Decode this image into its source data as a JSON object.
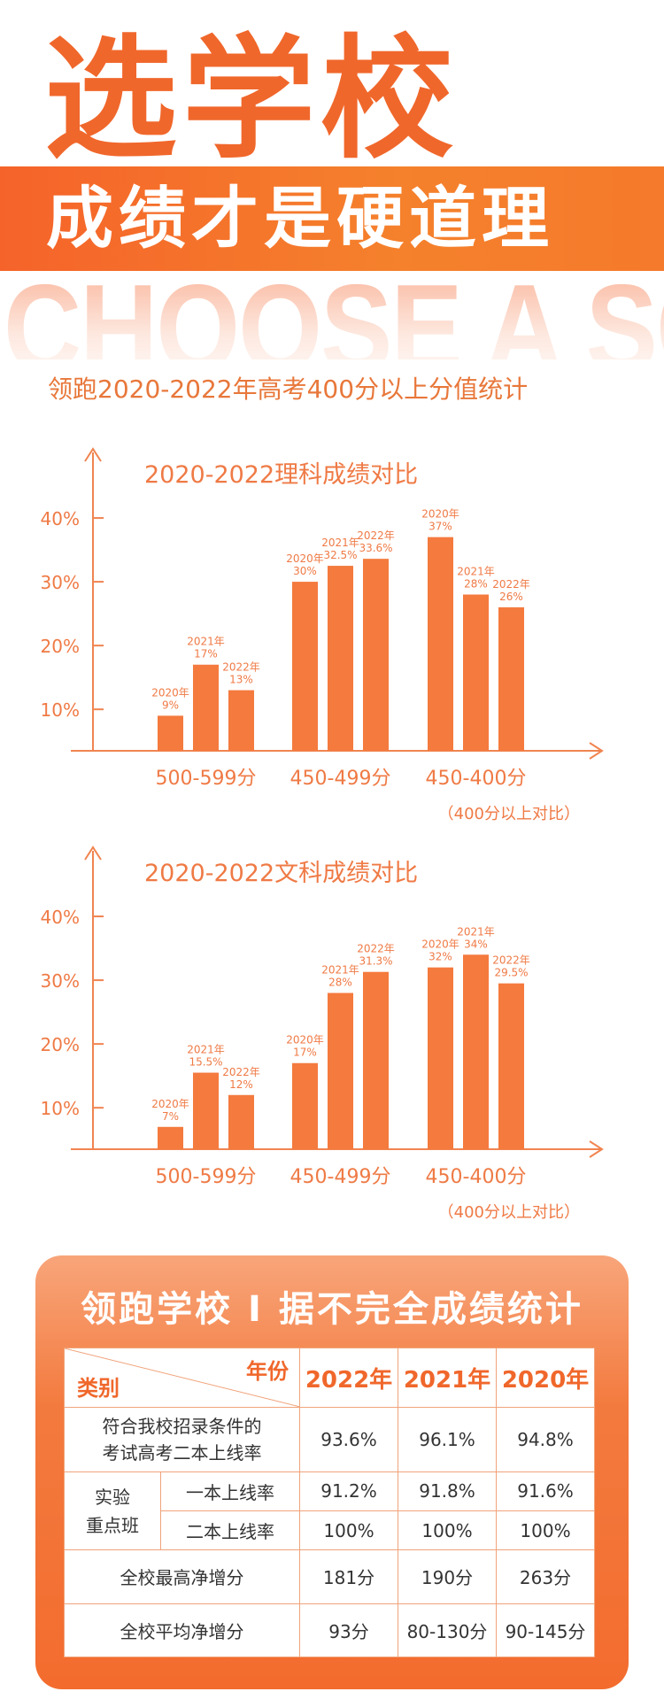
{
  "header": {
    "title": "选学校",
    "banner": "成绩才是硬道理",
    "english": "CHOOSE A SCHOOL",
    "subtitle": "领跑2020-2022年高考400分以上分值统计"
  },
  "chart_data": [
    {
      "type": "bar",
      "title": "2020-2022理科成绩对比",
      "categories": [
        "500-599分",
        "450-499分",
        "450-400分"
      ],
      "series": [
        {
          "name": "2020年",
          "values": [
            9,
            30,
            37
          ]
        },
        {
          "name": "2021年",
          "values": [
            17,
            32.5,
            28
          ]
        },
        {
          "name": "2022年",
          "values": [
            13,
            33.6,
            26
          ]
        }
      ],
      "yticks": [
        "10%",
        "20%",
        "30%",
        "40%"
      ],
      "ytick_values": [
        10,
        20,
        30,
        40
      ],
      "ylim": [
        3.5,
        50
      ],
      "note": "（400分以上对比）",
      "color": "#f47a3e"
    },
    {
      "type": "bar",
      "title": "2020-2022文科成绩对比",
      "categories": [
        "500-599分",
        "450-499分",
        "450-400分"
      ],
      "series": [
        {
          "name": "2020年",
          "values": [
            7,
            17,
            32
          ]
        },
        {
          "name": "2021年",
          "values": [
            15.5,
            28,
            34
          ]
        },
        {
          "name": "2022年",
          "values": [
            12,
            31.3,
            29.5
          ]
        }
      ],
      "yticks": [
        "10%",
        "20%",
        "30%",
        "40%"
      ],
      "ytick_values": [
        10,
        20,
        30,
        40
      ],
      "ylim": [
        3.5,
        50
      ],
      "note": "（400分以上对比）",
      "color": "#f47a3e"
    }
  ],
  "table": {
    "title": "领跑学校 I 据不完全成绩统计",
    "corner_top": "年份",
    "corner_bottom": "类别",
    "years": [
      "2022年",
      "2021年",
      "2020年"
    ],
    "row1": {
      "label_line1": "符合我校招录条件的",
      "label_line2": "考试高考二本上线率",
      "values": [
        "93.6%",
        "96.1%",
        "94.8%"
      ]
    },
    "group_label_line1": "实验",
    "group_label_line2": "重点班",
    "row2": {
      "label": "一本上线率",
      "values": [
        "91.2%",
        "91.8%",
        "91.6%"
      ]
    },
    "row3": {
      "label": "二本上线率",
      "values": [
        "100%",
        "100%",
        "100%"
      ]
    },
    "row4": {
      "label": "全校最高净增分",
      "values": [
        "181分",
        "190分",
        "263分"
      ]
    },
    "row5": {
      "label": "全校平均净增分",
      "values": [
        "93分",
        "80-130分",
        "90-145分"
      ]
    }
  }
}
